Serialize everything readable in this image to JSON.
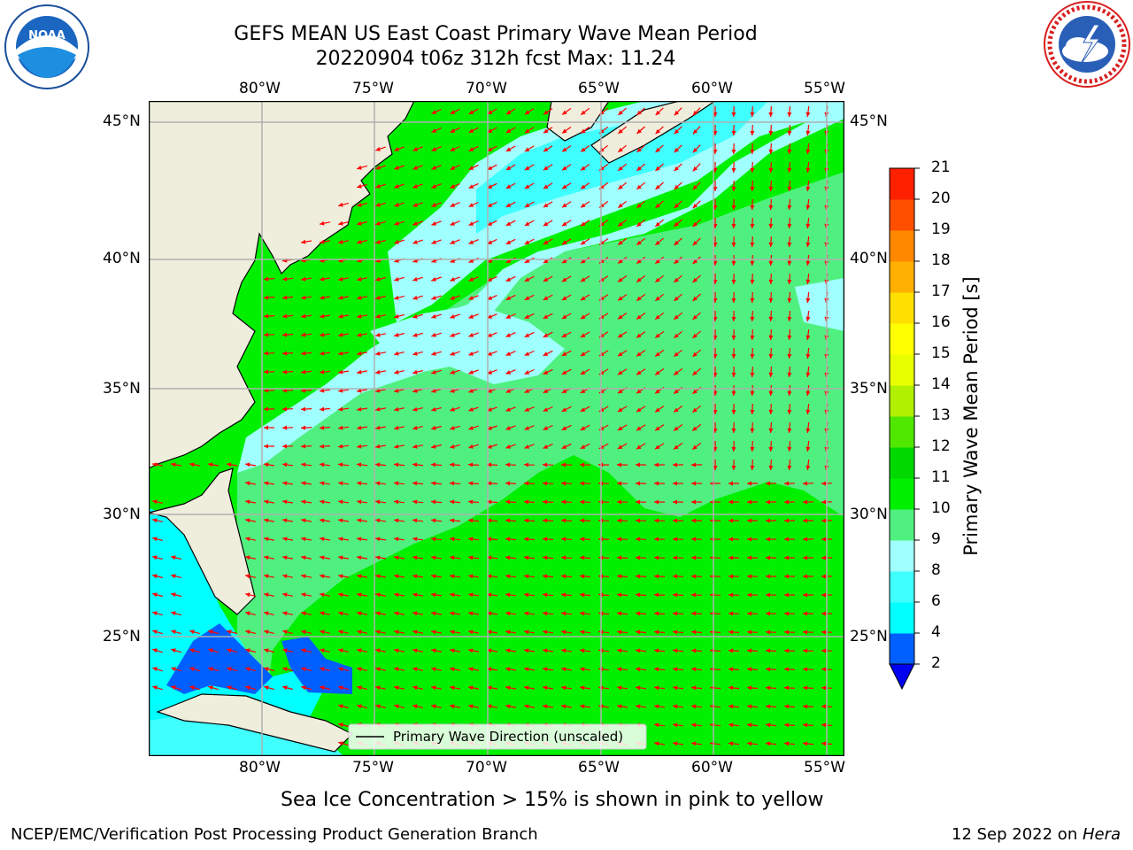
{
  "header": {
    "title_line1": "GEFS MEAN US East Coast Primary Wave Mean Period",
    "title_line2": "20220904 t06z 312h fcst   Max: 11.24"
  },
  "logos": {
    "left_text": "NOAA",
    "left_ring_text": "NATIONAL OCEANIC AND ATMOSPHERIC ADMINISTRATION · U.S. DEPARTMENT OF COMMERCE",
    "right_ring_text": "NATIONAL WEATHER SERVICE"
  },
  "map": {
    "lon_labels": [
      "80°W",
      "75°W",
      "70°W",
      "65°W",
      "60°W",
      "55°W"
    ],
    "lat_labels": [
      "45°N",
      "40°N",
      "35°N",
      "30°N",
      "25°N"
    ],
    "legend_label": "Primary Wave Direction (unscaled)",
    "colors": {
      "land": "#efeddc",
      "arrow": "#ff0000",
      "grid": "#b0b0b0"
    }
  },
  "colorbar": {
    "label": "Primary Wave Mean Period [s]",
    "ticks": [
      "2",
      "4",
      "6",
      "8",
      "9",
      "10",
      "11",
      "12",
      "13",
      "14",
      "15",
      "16",
      "17",
      "18",
      "19",
      "20",
      "21"
    ],
    "colors": [
      "#0060ff",
      "#00ffff",
      "#40ffff",
      "#a0ffff",
      "#50f080",
      "#00f000",
      "#00d800",
      "#50e800",
      "#b0f000",
      "#e8ff00",
      "#ffff00",
      "#ffe000",
      "#ffb000",
      "#ff8800",
      "#ff5000",
      "#ff2000"
    ],
    "under_color": "#0000f0"
  },
  "footer": {
    "note": "Sea Ice Concentration > 15% is shown in pink to yellow",
    "left": "NCEP/EMC/Verification Post Processing Product Generation Branch",
    "right_date": "12 Sep 2022 on ",
    "right_host": "Hera"
  }
}
